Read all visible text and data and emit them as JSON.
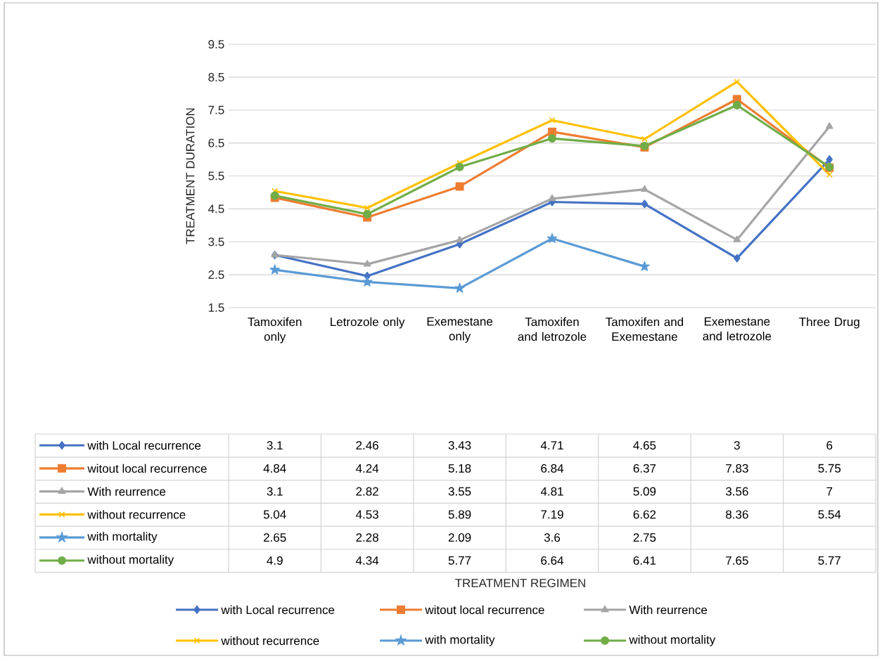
{
  "chart_data": {
    "type": "line",
    "categories": [
      "Tamoxifen only",
      "Letrozole only",
      "Exemestane only",
      "Tamoxifen and letrozole",
      "Tamoxifen and Exemestane",
      "Exemestane and letrozole",
      "Three Drug"
    ],
    "series": [
      {
        "name": "with Local recurrence",
        "color": "#4472c4",
        "marker": "diamond",
        "values": [
          3.1,
          2.46,
          3.43,
          4.71,
          4.65,
          3,
          6
        ]
      },
      {
        "name": "witout local recurrence",
        "color": "#ed7d31",
        "marker": "square",
        "values": [
          4.84,
          4.24,
          5.18,
          6.84,
          6.37,
          7.83,
          5.75
        ]
      },
      {
        "name": "With reurrence",
        "color": "#a5a5a5",
        "marker": "triangle",
        "values": [
          3.1,
          2.82,
          3.55,
          4.81,
          5.09,
          3.56,
          7
        ]
      },
      {
        "name": "without recurrence",
        "color": "#ffc000",
        "marker": "cross",
        "values": [
          5.04,
          4.53,
          5.89,
          7.19,
          6.62,
          8.36,
          5.54
        ]
      },
      {
        "name": "with mortality",
        "color": "#5b9bd5",
        "marker": "star",
        "values": [
          2.65,
          2.28,
          2.09,
          3.6,
          2.75,
          null,
          null
        ]
      },
      {
        "name": "without mortality",
        "color": "#70ad47",
        "marker": "circle",
        "values": [
          4.9,
          4.34,
          5.77,
          6.64,
          6.41,
          7.65,
          5.77
        ]
      }
    ],
    "annotations": [
      "TREATMENT REGIMEN"
    ],
    "ylabel": "TREATMENT DURATION",
    "ylim": [
      1.5,
      9.5
    ],
    "yticks": [
      1.5,
      2.5,
      3.5,
      4.5,
      5.5,
      6.5,
      7.5,
      8.5,
      9.5
    ],
    "grid": "y",
    "legend": "bottom",
    "data_labels": true,
    "line_style": "solid"
  }
}
